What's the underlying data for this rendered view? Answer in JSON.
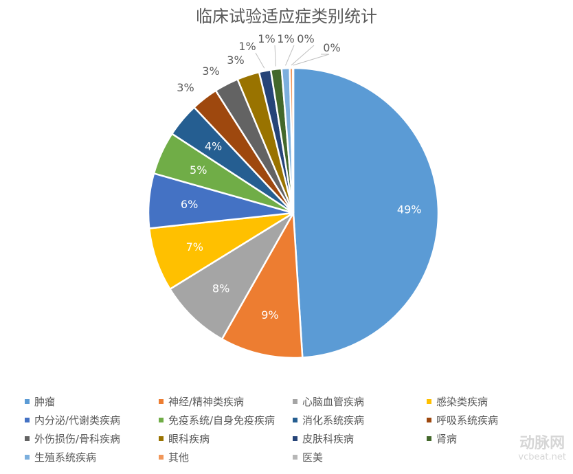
{
  "chart_data": {
    "type": "pie",
    "title": "临床试验适应症类别统计",
    "legend_position": "bottom",
    "categories": [
      "肿瘤",
      "神经/精神类疾病",
      "心脑血管疾病",
      "感染类疾病",
      "内分泌/代谢类疾病",
      "免疫系统/自身免疫疾病",
      "消化系统疾病",
      "呼吸系统疾病",
      "外伤损伤/骨科疾病",
      "眼科疾病",
      "皮肤科疾病",
      "肾病",
      "生殖系统疾病",
      "其他",
      "医美"
    ],
    "values": [
      49.0,
      9.2,
      8.0,
      7.1,
      6.1,
      4.8,
      3.8,
      3.0,
      2.7,
      2.5,
      1.3,
      1.2,
      0.9,
      0.35,
      0.05
    ],
    "labels": [
      "49%",
      "9%",
      "8%",
      "7%",
      "6%",
      "5%",
      "4%",
      "3%",
      "3%",
      "3%",
      "1%",
      "1%",
      "1%",
      "0%",
      "0%"
    ],
    "colors": [
      "#5B9BD5",
      "#ED7D31",
      "#A5A5A5",
      "#FFC000",
      "#4472C4",
      "#70AD47",
      "#255E91",
      "#9E480E",
      "#636363",
      "#997300",
      "#264478",
      "#43682B",
      "#7CAFDD",
      "#F1975A",
      "#B7B7B7"
    ]
  },
  "watermark": {
    "brand": "动脉网",
    "site": "vcbeat.net"
  }
}
